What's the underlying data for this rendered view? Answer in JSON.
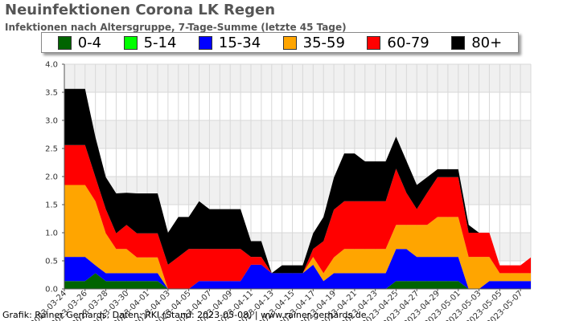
{
  "title": "Neuinfektionen Corona LK Regen",
  "subtitle": "Infektionen nach Altersgruppe, 7-Tage-Summe (letzte 45 Tage)",
  "footer": "Grafik: Rainer Gerhards, Daten: RKI (Stand: 2023-05-08) | www.rainer-gerhards.de",
  "chart_data": {
    "type": "area",
    "stacked": true,
    "ylim": [
      0,
      4.0
    ],
    "yticks": [
      "0.0",
      "0.5",
      "1.0",
      "1.5",
      "2.0",
      "2.5",
      "3.0",
      "3.5",
      "4.0"
    ],
    "grid": true,
    "legend_position": "top",
    "x": [
      "2023-03-24",
      "2023-03-25",
      "2023-03-26",
      "2023-03-27",
      "2023-03-28",
      "2023-03-29",
      "2023-03-30",
      "2023-03-31",
      "2023-04-01",
      "2023-04-02",
      "2023-04-03",
      "2023-04-04",
      "2023-04-05",
      "2023-04-06",
      "2023-04-07",
      "2023-04-08",
      "2023-04-09",
      "2023-04-10",
      "2023-04-11",
      "2023-04-12",
      "2023-04-13",
      "2023-04-14",
      "2023-04-15",
      "2023-04-16",
      "2023-04-17",
      "2023-04-18",
      "2023-04-19",
      "2023-04-20",
      "2023-04-21",
      "2023-04-22",
      "2023-04-23",
      "2023-04-24",
      "2023-04-25",
      "2023-04-26",
      "2023-04-27",
      "2023-04-28",
      "2023-04-29",
      "2023-04-30",
      "2023-05-01",
      "2023-05-02",
      "2023-05-03",
      "2023-05-04",
      "2023-05-05",
      "2023-05-06",
      "2023-05-07",
      "2023-05-08"
    ],
    "xtick_labels": [
      "2023-03-24",
      "2023-03-26",
      "2023-03-28",
      "2023-03-30",
      "2023-04-01",
      "2023-04-03",
      "2023-04-05",
      "2023-04-07",
      "2023-04-09",
      "2023-04-11",
      "2023-04-13",
      "2023-04-15",
      "2023-04-17",
      "2023-04-19",
      "2023-04-21",
      "2023-04-23",
      "2023-04-25",
      "2023-04-27",
      "2023-04-29",
      "2023-05-01",
      "2023-05-03",
      "2023-05-05",
      "2023-05-07"
    ],
    "series": [
      {
        "name": "0-4",
        "color": "#006400",
        "values": [
          0.14,
          0.14,
          0.14,
          0.28,
          0.14,
          0.14,
          0.14,
          0.14,
          0.14,
          0.14,
          0,
          0,
          0,
          0,
          0,
          0,
          0,
          0,
          0,
          0,
          0,
          0,
          0,
          0,
          0,
          0,
          0,
          0,
          0,
          0,
          0,
          0,
          0.14,
          0.14,
          0.14,
          0.14,
          0.14,
          0.14,
          0.14,
          0,
          0,
          0,
          0,
          0,
          0,
          0
        ]
      },
      {
        "name": "5-14",
        "color": "#00ff00",
        "values": [
          0,
          0,
          0,
          0,
          0,
          0,
          0,
          0,
          0,
          0,
          0,
          0,
          0,
          0,
          0,
          0,
          0,
          0,
          0,
          0,
          0,
          0,
          0,
          0,
          0,
          0,
          0,
          0,
          0,
          0,
          0,
          0,
          0,
          0,
          0,
          0,
          0,
          0,
          0,
          0,
          0,
          0,
          0,
          0,
          0,
          0
        ]
      },
      {
        "name": "15-34",
        "color": "#0000ff",
        "values": [
          0.43,
          0.43,
          0.43,
          0.14,
          0.14,
          0.14,
          0.14,
          0.14,
          0.14,
          0.14,
          0,
          0,
          0,
          0.14,
          0.14,
          0.14,
          0.14,
          0.14,
          0.43,
          0.43,
          0.28,
          0.28,
          0.28,
          0.28,
          0.43,
          0.14,
          0.28,
          0.28,
          0.28,
          0.28,
          0.28,
          0.28,
          0.57,
          0.57,
          0.43,
          0.43,
          0.43,
          0.43,
          0.43,
          0,
          0,
          0.14,
          0.14,
          0.14,
          0.14,
          0.14
        ]
      },
      {
        "name": "35-59",
        "color": "#ffa500",
        "values": [
          1.28,
          1.28,
          1.28,
          1.14,
          0.71,
          0.43,
          0.43,
          0.28,
          0.28,
          0.28,
          0,
          0,
          0,
          0,
          0,
          0,
          0,
          0,
          0,
          0,
          0,
          0,
          0,
          0,
          0.14,
          0.14,
          0.28,
          0.43,
          0.43,
          0.43,
          0.43,
          0.43,
          0.43,
          0.43,
          0.57,
          0.57,
          0.71,
          0.71,
          0.71,
          0.57,
          0.57,
          0.43,
          0.14,
          0.14,
          0.14,
          0.14
        ]
      },
      {
        "name": "60-79",
        "color": "#ff0000",
        "values": [
          0.71,
          0.71,
          0.71,
          0.43,
          0.43,
          0.28,
          0.43,
          0.43,
          0.43,
          0.43,
          0.43,
          0.57,
          0.71,
          0.57,
          0.57,
          0.57,
          0.57,
          0.57,
          0.14,
          0.14,
          0,
          0,
          0,
          0,
          0.14,
          0.57,
          0.85,
          0.85,
          0.85,
          0.85,
          0.85,
          0.85,
          1.0,
          0.57,
          0.28,
          0.57,
          0.71,
          0.71,
          0.71,
          0.43,
          0.43,
          0.43,
          0.14,
          0.14,
          0.14,
          0.28
        ]
      },
      {
        "name": "80+",
        "color": "#000000",
        "values": [
          1.0,
          1.0,
          1.0,
          0.71,
          0.57,
          0.71,
          0.57,
          0.71,
          0.71,
          0.71,
          0.57,
          0.71,
          0.57,
          0.85,
          0.71,
          0.71,
          0.71,
          0.71,
          0.28,
          0.28,
          0,
          0.14,
          0.14,
          0.14,
          0.28,
          0.43,
          0.57,
          0.85,
          0.85,
          0.71,
          0.71,
          0.71,
          0.57,
          0.57,
          0.43,
          0.28,
          0.14,
          0.14,
          0.14,
          0.14,
          0,
          0,
          0,
          0,
          0,
          0
        ]
      }
    ]
  }
}
